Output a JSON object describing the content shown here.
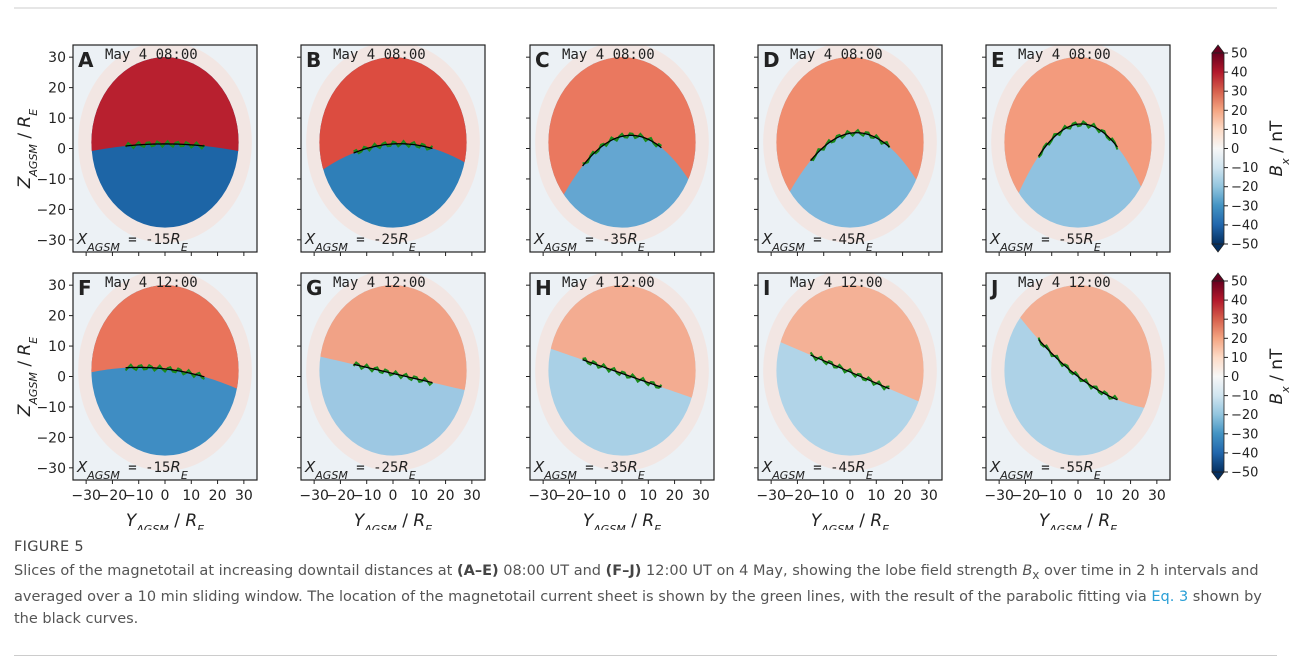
{
  "figure": {
    "rows": [
      {
        "panels": [
          {
            "letter": "A",
            "time": "May 4 08:00",
            "distance": "-15",
            "lobe_colors": [
              "#b8202f",
              "#1d65a6"
            ]
          },
          {
            "letter": "B",
            "time": "May 4 08:00",
            "distance": "-25",
            "lobe_colors": [
              "#dc4c40",
              "#2f7fb8"
            ]
          },
          {
            "letter": "C",
            "time": "May 4 08:00",
            "distance": "-35",
            "lobe_colors": [
              "#ea785f",
              "#64a6d1"
            ]
          },
          {
            "letter": "D",
            "time": "May 4 08:00",
            "distance": "-45",
            "lobe_colors": [
              "#f08d6f",
              "#80b8dc"
            ]
          },
          {
            "letter": "E",
            "time": "May 4 08:00",
            "distance": "-55",
            "lobe_colors": [
              "#f39b7d",
              "#90c2e0"
            ]
          }
        ]
      },
      {
        "panels": [
          {
            "letter": "F",
            "time": "May 4 12:00",
            "distance": "-15",
            "lobe_colors": [
              "#e9745b",
              "#3f8dc3"
            ]
          },
          {
            "letter": "G",
            "time": "May 4 12:00",
            "distance": "-25",
            "lobe_colors": [
              "#f1a286",
              "#9dc8e3"
            ]
          },
          {
            "letter": "H",
            "time": "May 4 12:00",
            "distance": "-35",
            "lobe_colors": [
              "#f3ac91",
              "#a9d0e6"
            ]
          },
          {
            "letter": "I",
            "time": "May 4 12:00",
            "distance": "-45",
            "lobe_colors": [
              "#f4b196",
              "#b1d4e8"
            ]
          },
          {
            "letter": "J",
            "time": "May 4 12:00",
            "distance": "-55",
            "lobe_colors": [
              "#f3ae93",
              "#add2e7"
            ]
          }
        ]
      }
    ],
    "xlim": [
      -35,
      35
    ],
    "ylim": [
      -34,
      34
    ],
    "xticks": [
      {
        "value": -30,
        "label": "−30"
      },
      {
        "value": -20,
        "label": "−20"
      },
      {
        "value": -10,
        "label": "−10"
      },
      0,
      10,
      20,
      30
    ],
    "yticks": [
      {
        "value": -30,
        "label": "−30"
      },
      {
        "value": -20,
        "label": "−20"
      },
      {
        "value": -10,
        "label": "−10"
      },
      0,
      10,
      20,
      30
    ],
    "x_label": {
      "var": "Y",
      "sub": "AGSM",
      "sep": " / ",
      "unit": "R",
      "unit_sub": "E"
    },
    "y_label": {
      "var": "Z",
      "sub": "AGSM",
      "sep": " / ",
      "unit": "R",
      "unit_sub": "E"
    },
    "position": {
      "var": "X",
      "sub": "AGSM",
      "eq": " = ",
      "unit": "R",
      "unit_sub": "E"
    },
    "colorbar": {
      "label": {
        "var": "B",
        "sub": "x",
        "unit": " / nT"
      },
      "lim": [
        -50,
        50
      ],
      "ticks": [
        {
          "value": -50,
          "label": "−50"
        },
        {
          "value": -40,
          "label": "−40"
        },
        {
          "value": -30,
          "label": "−30"
        },
        {
          "value": -20,
          "label": "−20"
        },
        {
          "value": -10,
          "label": "−10"
        },
        0,
        10,
        20,
        30,
        40,
        50
      ],
      "colors": [
        "#053061",
        "#2166ac",
        "#4393c3",
        "#92c5de",
        "#d1e5f0",
        "#f7f7f7",
        "#fddbc7",
        "#f4a582",
        "#d6604d",
        "#b2182b",
        "#67001f"
      ]
    }
  },
  "caption": {
    "label": "FIGURE 5",
    "s1": "Slices of the magnetotail at increasing downtail distances at ",
    "b1": "(A–E)",
    "s2": " 08:00 UT and ",
    "b2": "(F–J)",
    "s3": " 12:00 UT on 4 May, showing the lobe field strength ",
    "bx": "B",
    "bx_sub": "x",
    "s4": " over time in 2 h intervals and averaged over a 10 min sliding window. The location of the magnetotail current sheet is shown by the green lines, with the result of the parabolic fitting via ",
    "link": "Eq. 3",
    "s5": " shown by the black curves."
  }
}
